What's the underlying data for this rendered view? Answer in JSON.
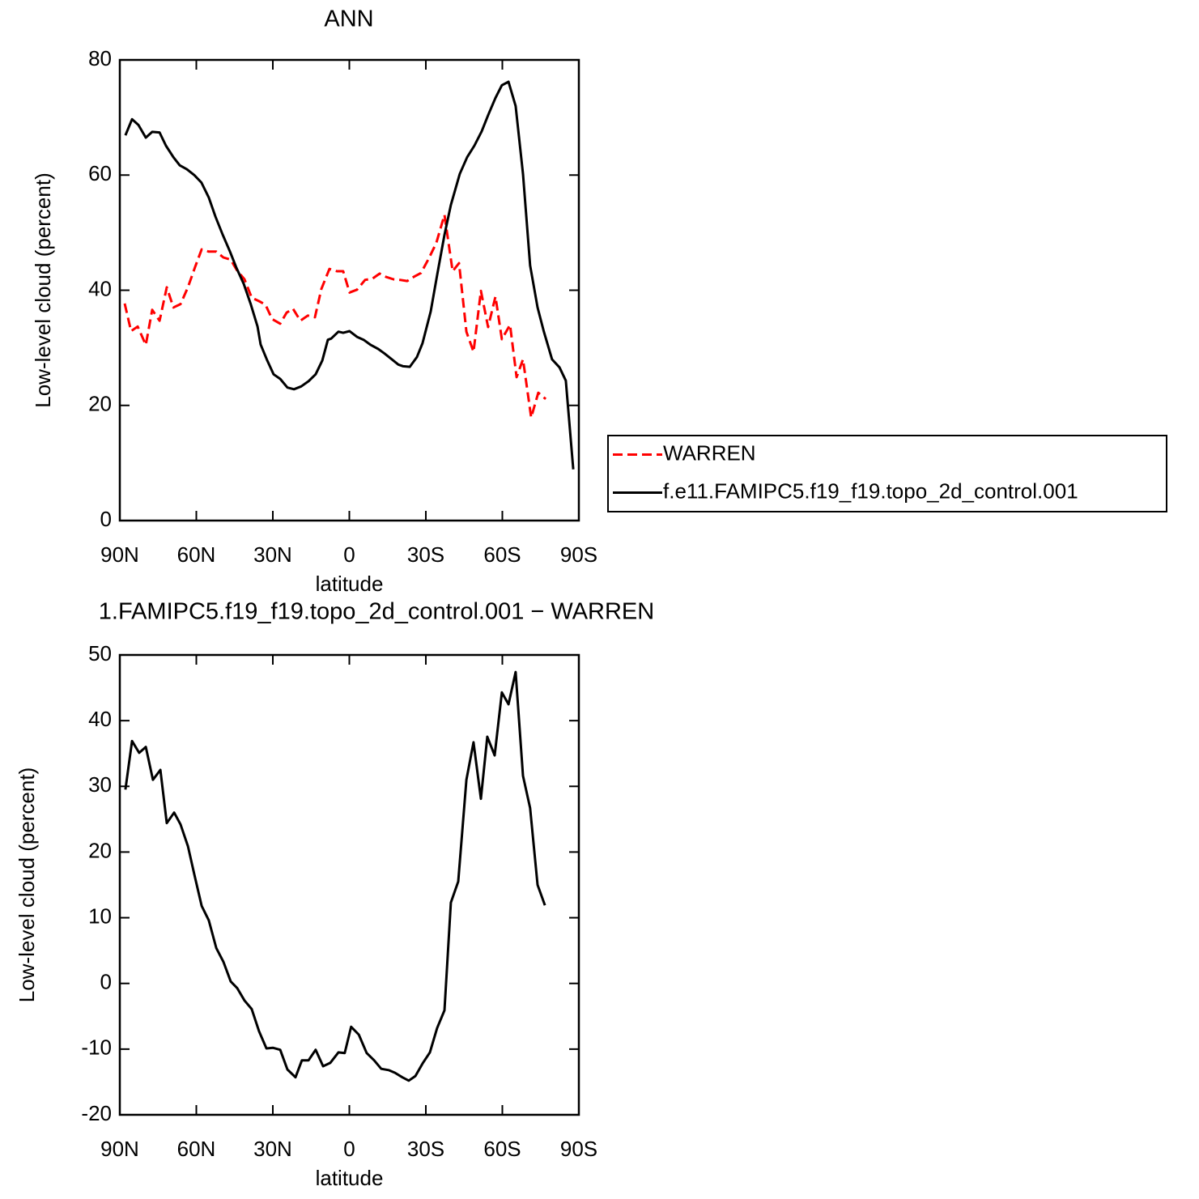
{
  "chart_data": [
    {
      "type": "line",
      "title": "ANN",
      "xlabel": "latitude",
      "ylabel": "Low-level cloud (percent)",
      "xlim": [
        90,
        -90
      ],
      "xticks": [
        {
          "value": 90,
          "label": "90N"
        },
        {
          "value": 60,
          "label": "60N"
        },
        {
          "value": 30,
          "label": "30N"
        },
        0,
        {
          "value": -30,
          "label": "30S"
        },
        {
          "value": -60,
          "label": "60S"
        },
        {
          "value": -90,
          "label": "90S"
        }
      ],
      "ylim": [
        0,
        80
      ],
      "yticks": [
        0,
        20,
        40,
        60,
        80
      ],
      "legend": "right",
      "series": [
        {
          "name": "WARREN",
          "color": "#ff0000",
          "dash": true,
          "x": [
            88.1,
            85.6,
            83.0,
            79.8,
            77.3,
            74.4,
            71.6,
            69.0,
            66.2,
            63.3,
            60.5,
            57.9,
            55.1,
            52.2,
            49.4,
            46.5,
            44.0,
            41.1,
            38.3,
            35.4,
            32.9,
            30.3,
            27.1,
            24.6,
            22.1,
            19.2,
            16.3,
            13.5,
            11.0,
            7.8,
            4.9,
            2.4,
            -0.1,
            -3.0,
            -6.2,
            -9.0,
            -11.9,
            -14.4,
            -17.3,
            -19.8,
            -22.7,
            -25.2,
            -28.1,
            -31.0,
            -34.1,
            -37.3,
            -40.5,
            -43.0,
            -45.9,
            -48.7,
            -51.6,
            -54.4,
            -57.3,
            -59.8,
            -63.0,
            -65.6,
            -68.1,
            -71.3,
            -74.1,
            -77.0
          ],
          "values": [
            37.7,
            32.9,
            33.7,
            30.5,
            36.6,
            34.7,
            40.5,
            37.0,
            37.6,
            40.5,
            44.0,
            47.1,
            46.7,
            46.7,
            45.7,
            45.3,
            43.4,
            41.9,
            38.7,
            38.1,
            37.5,
            35.0,
            34.2,
            36.1,
            36.8,
            34.7,
            35.6,
            35.3,
            40.2,
            43.7,
            43.3,
            43.3,
            39.6,
            40.1,
            41.8,
            42.0,
            42.9,
            42.3,
            41.9,
            41.8,
            41.6,
            42.3,
            43.0,
            45.4,
            48.2,
            53.1,
            43.3,
            44.7,
            32.8,
            29.3,
            39.9,
            33.6,
            38.9,
            31.5,
            34.0,
            24.9,
            28.0,
            17.9,
            22.2,
            21.1
          ]
        },
        {
          "name": "f.e11.FAMIPC5.f19_f19.topo_2d_control.001",
          "color": "#000000",
          "dash": false,
          "x": [
            87.8,
            85.2,
            82.7,
            79.8,
            77.3,
            74.4,
            71.9,
            69.0,
            66.5,
            63.7,
            60.8,
            58.0,
            55.1,
            52.5,
            49.7,
            46.8,
            44.3,
            41.4,
            38.6,
            36.0,
            34.8,
            32.2,
            29.7,
            27.1,
            24.3,
            21.7,
            18.9,
            16.0,
            13.2,
            10.6,
            8.4,
            7.1,
            4.3,
            2.4,
            -0.1,
            -3.0,
            -5.6,
            -8.4,
            -11.3,
            -13.8,
            -16.7,
            -19.2,
            -21.1,
            -23.7,
            -26.5,
            -28.7,
            -31.9,
            -34.4,
            -37.3,
            -39.8,
            -43.3,
            -46.2,
            -49.0,
            -51.9,
            -54.4,
            -57.3,
            -59.8,
            -62.4,
            -65.2,
            -68.1,
            -70.9,
            -73.8,
            -76.3,
            -79.5,
            -82.4,
            -84.9,
            -87.8
          ],
          "values": [
            66.9,
            69.7,
            68.7,
            66.5,
            67.5,
            67.4,
            65.1,
            63.1,
            61.7,
            61.0,
            60.0,
            58.7,
            56.1,
            52.8,
            49.7,
            46.7,
            43.9,
            41.1,
            37.5,
            33.7,
            30.6,
            27.8,
            25.4,
            24.6,
            23.1,
            22.8,
            23.3,
            24.2,
            25.4,
            27.8,
            31.4,
            31.6,
            32.8,
            32.6,
            32.9,
            31.9,
            31.4,
            30.5,
            29.8,
            29.0,
            28.0,
            27.1,
            26.8,
            26.7,
            28.4,
            30.8,
            36.3,
            42.6,
            49.6,
            54.8,
            60.2,
            63.1,
            65.1,
            67.6,
            70.4,
            73.4,
            75.6,
            76.2,
            72.0,
            60.2,
            44.3,
            37.0,
            32.8,
            28.0,
            26.6,
            24.3,
            8.9
          ]
        }
      ]
    },
    {
      "type": "line",
      "title": "1.FAMIPC5.f19_f19.topo_2d_control.001 − WARREN",
      "xlabel": "latitude",
      "ylabel": "Low-level cloud (percent)",
      "xlim": [
        90,
        -90
      ],
      "xticks": [
        {
          "value": 90,
          "label": "90N"
        },
        {
          "value": 60,
          "label": "60N"
        },
        {
          "value": 30,
          "label": "30N"
        },
        0,
        {
          "value": -30,
          "label": "30S"
        },
        {
          "value": -60,
          "label": "60S"
        },
        {
          "value": -90,
          "label": "90S"
        }
      ],
      "ylim": [
        -20,
        50
      ],
      "yticks": [
        -20,
        -10,
        0,
        10,
        20,
        30,
        40,
        50
      ],
      "series": [
        {
          "color": "#000000",
          "dash": false,
          "x": [
            87.8,
            85.2,
            82.4,
            79.8,
            77.0,
            74.1,
            71.6,
            68.7,
            66.2,
            63.3,
            60.8,
            57.9,
            55.1,
            52.2,
            49.4,
            46.5,
            44.0,
            41.1,
            38.3,
            35.4,
            32.5,
            30.0,
            27.1,
            24.3,
            21.1,
            18.6,
            16.0,
            13.2,
            10.3,
            7.5,
            4.3,
            1.8,
            -0.7,
            -3.7,
            -6.8,
            -9.7,
            -12.5,
            -15.4,
            -17.9,
            -20.8,
            -23.3,
            -25.9,
            -28.7,
            -31.6,
            -34.4,
            -37.3,
            -39.8,
            -42.7,
            -45.9,
            -48.7,
            -51.6,
            -54.1,
            -57.0,
            -59.8,
            -62.4,
            -65.2,
            -68.1,
            -70.9,
            -73.8,
            -76.7
          ],
          "values": [
            29.5,
            36.9,
            35.1,
            36.0,
            31.0,
            32.5,
            24.4,
            26.0,
            24.2,
            20.9,
            16.6,
            11.8,
            9.6,
            5.4,
            3.3,
            0.3,
            -0.7,
            -2.6,
            -3.9,
            -7.3,
            -9.9,
            -9.8,
            -10.1,
            -13.1,
            -14.3,
            -11.7,
            -11.7,
            -10.1,
            -12.6,
            -12.1,
            -10.5,
            -10.6,
            -6.6,
            -7.8,
            -10.6,
            -11.7,
            -13.0,
            -13.2,
            -13.6,
            -14.3,
            -14.8,
            -14.1,
            -12.2,
            -10.5,
            -6.8,
            -4.1,
            12.3,
            15.5,
            31.0,
            36.7,
            28.1,
            37.55,
            34.7,
            44.3,
            42.5,
            47.4,
            31.6,
            26.7,
            15.0,
            11.9
          ]
        }
      ]
    }
  ]
}
